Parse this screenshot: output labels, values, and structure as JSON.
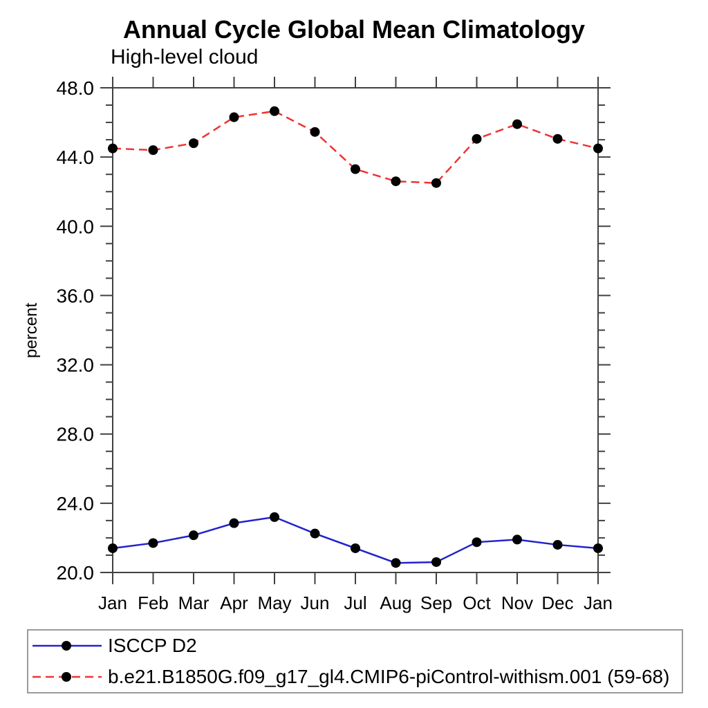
{
  "chart_data": {
    "type": "line",
    "title": "Annual Cycle Global Mean Climatology",
    "subtitle": "High-level cloud",
    "ylabel": "percent",
    "categories": [
      "Jan",
      "Feb",
      "Mar",
      "Apr",
      "May",
      "Jun",
      "Jul",
      "Aug",
      "Sep",
      "Oct",
      "Nov",
      "Dec",
      "Jan"
    ],
    "ylim": [
      20.0,
      48.0
    ],
    "y_major_ticks": [
      20.0,
      24.0,
      28.0,
      32.0,
      36.0,
      40.0,
      44.0,
      48.0
    ],
    "y_minor_step": 1.0,
    "grid": false,
    "legend_position": "bottom",
    "marker": {
      "shape": "circle",
      "color": "#000000"
    },
    "axis_color": "#404040",
    "series": [
      {
        "name": "ISCCP D2",
        "color": "#2222cc",
        "line_style": "solid",
        "values": [
          21.4,
          21.7,
          22.15,
          22.85,
          23.2,
          22.25,
          21.4,
          20.55,
          20.6,
          21.75,
          21.9,
          21.6,
          21.4
        ]
      },
      {
        "name": "b.e21.B1850G.f09_g17_gl4.CMIP6-piControl-withism.001 (59-68)",
        "color": "#ee3333",
        "line_style": "dashed",
        "values": [
          44.5,
          44.4,
          44.8,
          46.3,
          46.65,
          45.45,
          43.3,
          42.6,
          42.5,
          45.05,
          45.9,
          45.05,
          44.5
        ]
      }
    ]
  }
}
